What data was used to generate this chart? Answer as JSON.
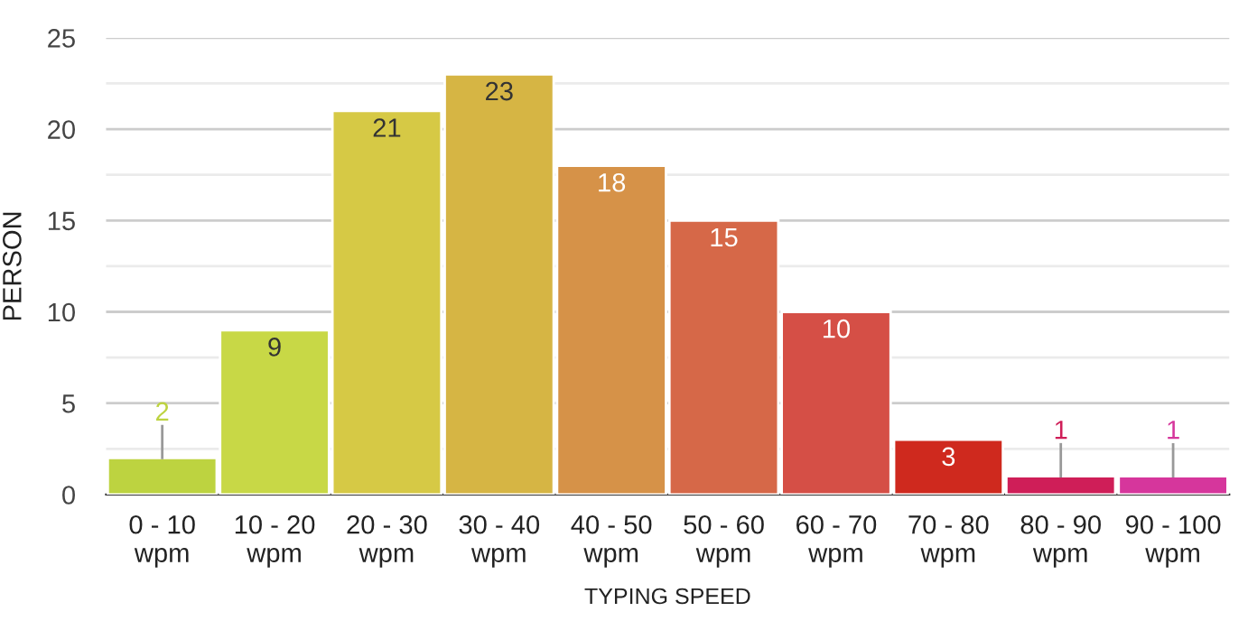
{
  "chart_data": {
    "type": "bar",
    "xlabel": "TYPING SPEED",
    "ylabel": "PERSON",
    "categories": [
      "0 - 10\nwpm",
      "10 - 20\nwpm",
      "20 - 30\nwpm",
      "30 - 40\nwpm",
      "40 - 50\nwpm",
      "50 - 60\nwpm",
      "60 - 70\nwpm",
      "70 - 80\nwpm",
      "80 - 90\nwpm",
      "90 - 100\nwpm"
    ],
    "values": [
      2,
      9,
      21,
      23,
      18,
      15,
      10,
      3,
      1,
      1
    ],
    "colors": [
      "#bdd340",
      "#c8d846",
      "#d6c945",
      "#d6b544",
      "#d69248",
      "#d66848",
      "#d54f46",
      "#cf291e",
      "#cf1e58",
      "#d6369c"
    ],
    "data_labels": true,
    "ylim": [
      0,
      25
    ],
    "yticks": [
      0,
      {
        "value": 2.5,
        "label": null
      },
      5,
      {
        "value": 7.5,
        "label": null
      },
      10,
      {
        "value": 12.5,
        "label": null
      },
      15,
      {
        "value": 17.5,
        "label": null
      },
      20,
      {
        "value": 22.5,
        "label": null
      },
      25
    ],
    "grid": "y"
  }
}
